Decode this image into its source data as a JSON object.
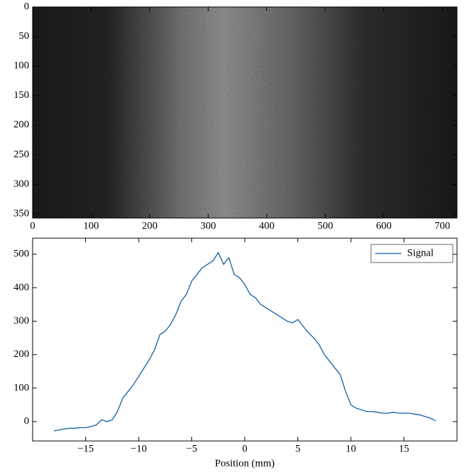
{
  "chart_data": [
    {
      "type": "image",
      "xlim": [
        0,
        725
      ],
      "ylim": [
        357,
        0
      ],
      "xticks": [
        0,
        100,
        200,
        300,
        400,
        500,
        600,
        700
      ],
      "yticks": [
        0,
        50,
        100,
        150,
        200,
        250,
        300,
        350
      ]
    },
    {
      "type": "line",
      "xlabel": "Position (mm)",
      "x": [
        -18,
        -17.5,
        -17,
        -16.5,
        -16,
        -15.5,
        -15,
        -14.5,
        -14,
        -13.5,
        -13,
        -12.5,
        -12,
        -11.5,
        -11,
        -10.5,
        -10,
        -9.5,
        -9,
        -8.5,
        -8,
        -7.5,
        -7,
        -6.5,
        -6,
        -5.5,
        -5,
        -4.5,
        -4,
        -3.5,
        -3,
        -2.5,
        -2,
        -1.5,
        -1,
        -0.5,
        0,
        0.5,
        1,
        1.5,
        2,
        2.5,
        3,
        3.5,
        4,
        4.5,
        5,
        5.5,
        6,
        6.5,
        7,
        7.5,
        8,
        8.5,
        9,
        9.5,
        10,
        10.5,
        11,
        11.5,
        12,
        12.5,
        13,
        13.5,
        14,
        14.5,
        15,
        15.5,
        16,
        16.5,
        17,
        17.5,
        18
      ],
      "series": [
        {
          "name": "Signal",
          "color": "#0C5DA5",
          "values": [
            -28,
            -25,
            -22,
            -20,
            -20,
            -18,
            -18,
            -15,
            -10,
            5,
            0,
            5,
            30,
            70,
            90,
            110,
            135,
            160,
            185,
            215,
            260,
            270,
            290,
            320,
            360,
            380,
            420,
            440,
            460,
            470,
            480,
            505,
            470,
            490,
            440,
            430,
            410,
            380,
            370,
            350,
            340,
            330,
            320,
            310,
            300,
            295,
            305,
            285,
            265,
            250,
            230,
            200,
            180,
            160,
            140,
            90,
            50,
            40,
            35,
            30,
            30,
            28,
            25,
            25,
            28,
            25,
            25,
            25,
            22,
            20,
            15,
            10,
            2
          ]
        }
      ],
      "xlim": [
        -20,
        20
      ],
      "ylim": [
        -58,
        548
      ],
      "xticks": [
        {
          "value": -15,
          "label": "−15"
        },
        {
          "value": -10,
          "label": "−10"
        },
        {
          "value": -5,
          "label": "−5"
        },
        0,
        5,
        10,
        15
      ],
      "yticks": [
        0,
        100,
        200,
        300,
        400,
        500
      ],
      "legend": "upper right"
    }
  ]
}
